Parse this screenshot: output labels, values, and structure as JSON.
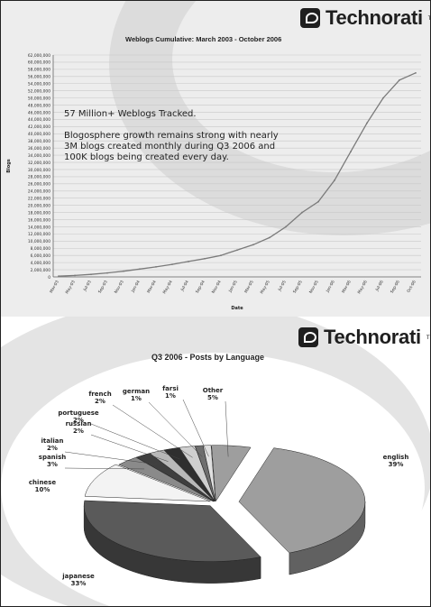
{
  "brand": {
    "name": "Technorati",
    "tm": "TM"
  },
  "colors": {
    "panel_bg": "#ededed",
    "swirl": "#d6d6d6",
    "grid": "#c8c8c8",
    "line": "#7a7a7a",
    "pie_shades": [
      "#9e9e9e",
      "#5a5a5a",
      "#f3f3f3",
      "#8a8a8a",
      "#3f3f3f",
      "#b8b8b8",
      "#2f2f2f",
      "#cfcfcf",
      "#6e6e6e",
      "#e0e0e0"
    ]
  },
  "callout": {
    "line1": "57 Million+ Weblogs Tracked.",
    "line2": "Blogosphere growth remains strong with nearly 3M blogs created monthly during Q3 2006 and 100K blogs being created every day."
  },
  "chart_data": [
    {
      "type": "line",
      "title": "Weblogs Cumulative: March 2003 - October 2006",
      "xlabel": "Date",
      "ylabel": "Blogs",
      "ylim": [
        0,
        62000000
      ],
      "yticks": [
        "0",
        "2,000,000",
        "4,000,000",
        "6,000,000",
        "8,000,000",
        "10,000,000",
        "12,000,000",
        "14,000,000",
        "16,000,000",
        "18,000,000",
        "20,000,000",
        "22,000,000",
        "24,000,000",
        "26,000,000",
        "28,000,000",
        "30,000,000",
        "32,000,000",
        "34,000,000",
        "36,000,000",
        "38,000,000",
        "40,000,000",
        "42,000,000",
        "44,000,000",
        "46,000,000",
        "48,000,000",
        "50,000,000",
        "52,000,000",
        "54,000,000",
        "56,000,000",
        "58,000,000",
        "60,000,000",
        "62,000,000"
      ],
      "xticks": [
        "Mar-03",
        "May-03",
        "Jul-03",
        "Sep-03",
        "Nov-03",
        "Jan-04",
        "Mar-04",
        "May-04",
        "Jul-04",
        "Sep-04",
        "Nov-04",
        "Jan-05",
        "Mar-05",
        "May-05",
        "Jul-05",
        "Sep-05",
        "Nov-05",
        "Jan-06",
        "Mar-06",
        "May-06",
        "Jul-06",
        "Sep-06",
        "Oct-06"
      ],
      "grid": true,
      "series": [
        {
          "x": [
            "Mar-03",
            "May-03",
            "Jul-03",
            "Sep-03",
            "Nov-03",
            "Jan-04",
            "Mar-04",
            "May-04",
            "Jul-04",
            "Sep-04",
            "Nov-04",
            "Jan-05",
            "Mar-05",
            "May-05",
            "Jul-05",
            "Sep-05",
            "Nov-05",
            "Jan-06",
            "Mar-06",
            "May-06",
            "Jul-06",
            "Sep-06",
            "Oct-06"
          ],
          "values": [
            200000,
            400000,
            700000,
            1100000,
            1600000,
            2200000,
            2800000,
            3500000,
            4300000,
            5100000,
            6000000,
            7500000,
            9000000,
            11000000,
            14000000,
            18000000,
            21000000,
            27000000,
            35000000,
            43000000,
            50000000,
            55000000,
            57000000
          ]
        }
      ]
    },
    {
      "type": "pie",
      "title": "Q3 2006 - Posts by Language",
      "legend": "none",
      "slices": [
        {
          "label": "english",
          "pct": "39%",
          "value": 39
        },
        {
          "label": "japanese",
          "pct": "33%",
          "value": 33
        },
        {
          "label": "chinese",
          "pct": "10%",
          "value": 10
        },
        {
          "label": "spanish",
          "pct": "3%",
          "value": 3
        },
        {
          "label": "italian",
          "pct": "2%",
          "value": 2
        },
        {
          "label": "russian",
          "pct": "2%",
          "value": 2
        },
        {
          "label": "portuguese",
          "pct": "2%",
          "value": 2
        },
        {
          "label": "french",
          "pct": "2%",
          "value": 2
        },
        {
          "label": "german",
          "pct": "1%",
          "value": 1
        },
        {
          "label": "farsi",
          "pct": "1%",
          "value": 1
        },
        {
          "label": "Other",
          "pct": "5%",
          "value": 5
        }
      ]
    }
  ]
}
